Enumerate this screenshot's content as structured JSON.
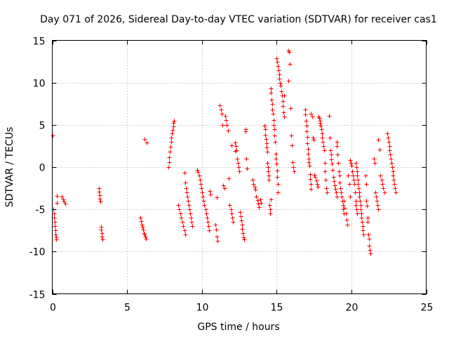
{
  "chart_data": {
    "type": "scatter",
    "title": "Day 071 of 2026, Sidereal Day-to-day VTEC variation (SDTVAR) for receiver cas1",
    "xlabel": "GPS time / hours",
    "ylabel": "SDTVAR / TECUs",
    "xlim": [
      0,
      25
    ],
    "ylim": [
      -15,
      15
    ],
    "xticks": [
      0,
      5,
      10,
      15,
      20,
      25
    ],
    "yticks": [
      -15,
      -10,
      -5,
      0,
      5,
      10,
      15
    ],
    "xtick_labels": [
      "0",
      "5",
      "10",
      "15",
      "20",
      "25"
    ],
    "ytick_labels": [
      "-15",
      "-10",
      "-5",
      "0",
      "5",
      "10",
      "15"
    ],
    "grid": true,
    "marker": "plus",
    "color": "#ff0000",
    "series": [
      {
        "name": "SDTVAR",
        "clusters": [
          {
            "x0": 0.0,
            "x1": 0.05,
            "y": [
              3.7
            ]
          },
          {
            "x0": 0.08,
            "x1": 0.32,
            "y": [
              -5.0,
              -5.5,
              -6.0,
              -6.5,
              -7.0,
              -7.5,
              -8.0,
              -8.3,
              -8.6,
              -3.4,
              -4.2
            ]
          },
          {
            "x0": 0.65,
            "x1": 0.85,
            "y": [
              -3.5,
              -3.8,
              -4.1,
              -4.3
            ]
          },
          {
            "x0": 3.1,
            "x1": 3.35,
            "y": [
              -2.5,
              -2.9,
              -3.3,
              -3.7,
              -4.1,
              -7.1,
              -7.4,
              -7.8,
              -8.2,
              -8.6
            ]
          },
          {
            "x0": 5.9,
            "x1": 6.25,
            "y": [
              -6.0,
              -6.4,
              -6.8,
              -7.1,
              -7.4,
              -7.8,
              -8.0,
              -8.2,
              -8.5
            ]
          },
          {
            "x0": 6.15,
            "x1": 6.3,
            "y": [
              3.3,
              2.9
            ]
          },
          {
            "x0": 7.75,
            "x1": 8.15,
            "y": [
              0.0,
              0.6,
              1.2,
              1.8,
              2.4,
              3.0,
              3.5,
              4.0,
              4.4,
              4.8,
              5.2,
              5.5
            ]
          },
          {
            "x0": 8.4,
            "x1": 8.9,
            "y": [
              -4.5,
              -5.0,
              -5.5,
              -6.0,
              -6.5,
              -7.0,
              -7.5,
              -8.0
            ]
          },
          {
            "x0": 8.85,
            "x1": 9.35,
            "y": [
              -0.7,
              -1.8,
              -2.5,
              -3.0,
              -3.5,
              -4.0,
              -4.5,
              -5.0,
              -5.5,
              -6.0,
              -6.5,
              -7.0
            ]
          },
          {
            "x0": 9.7,
            "x1": 10.6,
            "y": [
              -0.3,
              -0.6,
              -1.0,
              -1.5,
              -2.0,
              -2.5,
              -3.0,
              -3.5,
              -4.0,
              -4.5,
              -5.0,
              -5.5,
              -6.0,
              -6.5,
              -7.0,
              -7.5,
              -2.8,
              -3.2
            ]
          },
          {
            "x0": 10.9,
            "x1": 11.05,
            "y": [
              -6.8,
              -7.4,
              -8.2,
              -8.7
            ]
          },
          {
            "x0": 10.95,
            "x1": 11.05,
            "y": [
              -3.6
            ]
          },
          {
            "x0": 11.2,
            "x1": 11.5,
            "y": [
              7.3,
              6.8,
              6.3,
              5.0,
              -2.2,
              -2.5
            ]
          },
          {
            "x0": 11.55,
            "x1": 12.1,
            "y": [
              6.1,
              5.6,
              5.0,
              4.3,
              -1.3,
              -4.5,
              -5.0,
              -5.5,
              -6.0,
              -6.5
            ]
          },
          {
            "x0": 12.0,
            "x1": 12.2,
            "y": [
              2.6,
              1.9
            ]
          },
          {
            "x0": 12.2,
            "x1": 12.85,
            "y": [
              2.9,
              2.5,
              2.0,
              1.0,
              0.5,
              0.0,
              -0.5,
              -5.3,
              -5.8,
              -6.3,
              -6.8,
              -7.3,
              -7.8,
              -8.3,
              -8.6
            ]
          },
          {
            "x0": 12.9,
            "x1": 13.0,
            "y": [
              4.5,
              4.2,
              1.0,
              -0.2
            ]
          },
          {
            "x0": 13.4,
            "x1": 13.95,
            "y": [
              -1.5,
              -2.0,
              -2.3,
              -2.7,
              -3.5,
              -3.9,
              -4.3,
              -4.7,
              -3.8,
              -4.2
            ]
          },
          {
            "x0": 14.2,
            "x1": 14.6,
            "y": [
              4.9,
              4.5,
              3.8,
              3.3,
              2.8,
              2.3,
              1.8,
              0.5,
              0.0,
              -0.5,
              -1.0,
              -1.5,
              -4.5,
              -5.0,
              -5.5,
              -3.8
            ]
          },
          {
            "x0": 14.6,
            "x1": 15.1,
            "y": [
              9.3,
              8.8,
              8.0,
              7.5,
              6.8,
              6.3,
              5.6,
              5.0,
              4.5,
              3.7,
              3.0,
              1.6,
              1.0,
              0.4,
              -0.4,
              -1.2,
              -2.0,
              -3.0
            ]
          },
          {
            "x0": 15.0,
            "x1": 15.5,
            "y": [
              12.9,
              12.5,
              12.0,
              11.5,
              11.0,
              10.5,
              10.0,
              9.6,
              9.0,
              8.5,
              7.8,
              7.2,
              6.5,
              6.0
            ]
          },
          {
            "x0": 15.5,
            "x1": 15.8,
            "y": [
              8.5,
              10.2
            ]
          },
          {
            "x0": 15.8,
            "x1": 16.15,
            "y": [
              13.8,
              13.6,
              12.2,
              7.0,
              3.7,
              2.6,
              0.6,
              0.0,
              -0.5
            ]
          },
          {
            "x0": 16.9,
            "x1": 17.3,
            "y": [
              6.8,
              6.2,
              5.5,
              4.9,
              4.2,
              3.6,
              2.8,
              2.2,
              1.6,
              1.0,
              0.6,
              0.2,
              -0.8,
              -1.4,
              -2.0,
              -2.6
            ]
          },
          {
            "x0": 17.3,
            "x1": 17.75,
            "y": [
              6.3,
              6.0,
              3.5,
              3.2,
              -0.9,
              -1.2,
              -1.6,
              -2.0,
              -2.3
            ]
          },
          {
            "x0": 17.8,
            "x1": 18.35,
            "y": [
              6.0,
              5.8,
              5.5,
              5.2,
              4.9,
              4.5,
              4.0,
              3.5,
              3.0,
              2.5,
              2.0,
              0.5,
              -0.5,
              -1.5,
              -2.5,
              -3.0
            ]
          },
          {
            "x0": 18.5,
            "x1": 19.0,
            "y": [
              6.1,
              3.5,
              2.0,
              1.5,
              0.9,
              0.4,
              -0.3,
              -1.2,
              -1.7,
              -2.2,
              -2.6,
              -3.0,
              -3.5
            ]
          },
          {
            "x0": 19.0,
            "x1": 19.5,
            "y": [
              3.0,
              2.5,
              1.5,
              0.5,
              -0.5,
              -1.0,
              -1.8,
              -2.5,
              -3.0,
              -3.5,
              -4.0,
              -4.5,
              -5.0,
              -5.5
            ]
          },
          {
            "x0": 19.5,
            "x1": 19.9,
            "y": [
              -4.0,
              -4.8,
              -5.5,
              -6.2,
              -6.8,
              -1.0,
              -2.0,
              -3.5
            ]
          },
          {
            "x0": 19.9,
            "x1": 20.4,
            "y": [
              0.8,
              0.5,
              0.2,
              -0.5,
              -1.0,
              -1.5,
              -2.0,
              -3.0,
              -4.0,
              -4.5,
              -5.0,
              -5.5
            ]
          },
          {
            "x0": 20.3,
            "x1": 20.8,
            "y": [
              0.5,
              0.0,
              -0.5,
              -1.0,
              -1.5,
              -2.0,
              -2.5,
              -3.0,
              -3.5,
              -4.0,
              -4.5,
              -5.0,
              -5.5,
              -6.0,
              -6.5,
              -7.0,
              -7.5,
              -8.0
            ]
          },
          {
            "x0": 20.95,
            "x1": 21.25,
            "y": [
              -1.0,
              -2.0,
              -4.0,
              -4.6,
              -6.0,
              -6.5,
              -8.0,
              -8.5,
              -9.3,
              -9.8,
              -10.2
            ]
          },
          {
            "x0": 21.5,
            "x1": 21.8,
            "y": [
              1.0,
              0.5,
              -3.0,
              -3.5,
              -4.0,
              -4.5,
              -5.0
            ]
          },
          {
            "x0": 21.8,
            "x1": 22.2,
            "y": [
              3.2,
              2.1,
              -1.0,
              -1.5,
              -2.0,
              -2.5,
              -3.0
            ]
          },
          {
            "x0": 22.4,
            "x1": 22.95,
            "y": [
              4.0,
              3.5,
              3.0,
              2.5,
              2.0,
              1.5,
              1.0,
              0.5,
              0.0,
              -0.5,
              -1.0,
              -1.5,
              -2.0,
              -2.5,
              -3.0
            ]
          }
        ]
      }
    ]
  }
}
